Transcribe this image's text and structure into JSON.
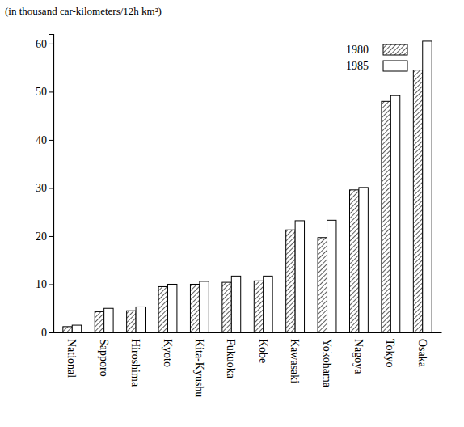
{
  "chart_data": {
    "type": "bar",
    "y_label": "(in thousand car-kilometers/12h km²)",
    "categories": [
      "National",
      "Sapporo",
      "Hiroshima",
      "Kyoto",
      "Kita-Kyushu",
      "Fukuoka",
      "Kobe",
      "Kawasaki",
      "Yokohama",
      "Nagoya",
      "Tokyo",
      "Osaka"
    ],
    "series": [
      {
        "name": "1980",
        "color": "#333333",
        "line_style": "hatch",
        "values": [
          1.2,
          4.3,
          4.5,
          9.5,
          10.0,
          10.4,
          10.7,
          21.3,
          19.7,
          29.6,
          48.0,
          54.5
        ]
      },
      {
        "name": "1985",
        "color": "#ffffff",
        "line_style": "solid",
        "values": [
          1.5,
          5.0,
          5.3,
          10.0,
          10.6,
          11.7,
          11.7,
          23.2,
          23.3,
          30.1,
          49.2,
          60.5
        ]
      }
    ],
    "ylim": [
      0,
      62
    ],
    "yticks": [
      0,
      10,
      20,
      30,
      40,
      50,
      60
    ],
    "grid": false,
    "legend": "upper right"
  }
}
